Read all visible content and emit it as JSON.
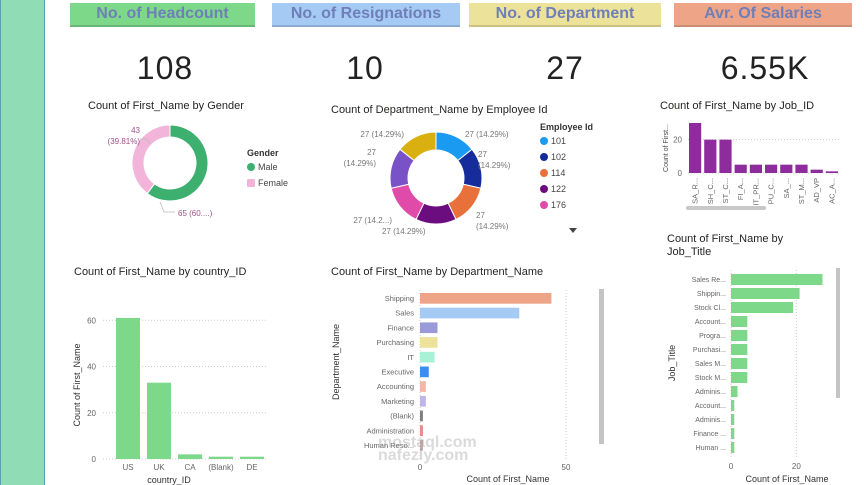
{
  "kpis": [
    {
      "label": "No. of Headcount",
      "value": "108",
      "color": "#7dd88a"
    },
    {
      "label": "No. of Resignations",
      "value": "10",
      "color": "#a5cbf5"
    },
    {
      "label": "No. of Department",
      "value": "27",
      "color": "#ede29a"
    },
    {
      "label": "Avr. Of Salaries",
      "value": "6.55K",
      "color": "#eea587"
    }
  ],
  "watermark": {
    "line1": "mostaql.com",
    "line2": "nafezly.com"
  },
  "chart_data": [
    {
      "id": "gender",
      "type": "pie",
      "title": "Count of First_Name by Gender",
      "legend_title": "Gender",
      "legend_position": "right",
      "categories": [
        "Male",
        "Female"
      ],
      "values": [
        65,
        43
      ],
      "colors": [
        "#3daf6f",
        "#f2b5d9"
      ],
      "labels": [
        "65 (60....)",
        "43 (39.81%)"
      ]
    },
    {
      "id": "employee",
      "type": "pie",
      "title": "Count of Department_Name by Employee Id",
      "legend_title": "Employee Id",
      "legend_position": "right",
      "categories": [
        "101",
        "102",
        "114",
        "122",
        "176",
        "?",
        "?"
      ],
      "legend_items": [
        "101",
        "102",
        "114",
        "122",
        "176"
      ],
      "values": [
        27,
        27,
        27,
        27,
        27,
        27,
        27
      ],
      "colors": [
        "#1a9af0",
        "#152c9a",
        "#e8703a",
        "#6b0d7e",
        "#e04aa8",
        "#7a52c7",
        "#d9b00f"
      ],
      "labels": [
        "27 (14.29%)",
        "27 (14.29%)",
        "27 (14.29%)",
        "27 (14.29%)",
        "27 (14.2...)",
        "27 (14.29%)",
        "27 (14.29%)"
      ]
    },
    {
      "id": "jobid",
      "type": "bar",
      "title": "Count of First_Name by Job_ID",
      "xlabel": "",
      "ylabel": "Count of First...",
      "categories": [
        "SA_R...",
        "SH_C...",
        "ST_C...",
        "FI_A...",
        "IT_PR...",
        "PU_C...",
        "SA_...",
        "ST_M...",
        "AD_VP",
        "AC_A..."
      ],
      "values": [
        30,
        20,
        20,
        5,
        5,
        5,
        5,
        5,
        2,
        1
      ],
      "yticks": [
        0,
        20
      ],
      "ylim": [
        0,
        30
      ],
      "color": "#8e2c9e",
      "grid": true
    },
    {
      "id": "country",
      "type": "bar",
      "title": "Count of First_Name by country_ID",
      "xlabel": "country_ID",
      "ylabel": "Count of First_Name",
      "categories": [
        "US",
        "UK",
        "CA",
        "(Blank)",
        "DE"
      ],
      "values": [
        61,
        33,
        2,
        1,
        1
      ],
      "yticks": [
        0,
        20,
        40,
        60
      ],
      "ylim": [
        0,
        64
      ],
      "color": "#7dd88a",
      "grid": true
    },
    {
      "id": "department",
      "type": "bar",
      "orientation": "horizontal",
      "title": "Count of First_Name by Department_Name",
      "xlabel": "Count of First_Name",
      "ylabel": "Department_Name",
      "categories": [
        "Shipping",
        "Sales",
        "Finance",
        "Purchasing",
        "IT",
        "Executive",
        "Accounting",
        "Marketing",
        "(Blank)",
        "Administration",
        "Human Reso..."
      ],
      "values": [
        45,
        34,
        6,
        6,
        5,
        3,
        2,
        2,
        1,
        1,
        1
      ],
      "colors": [
        "#eea587",
        "#a5cbf5",
        "#9a9ad8",
        "#ede29a",
        "#a7f2d6",
        "#3a8ff0",
        "#f0b8a8",
        "#c0b5e8",
        "#808080",
        "#e88a8a",
        "#c8a8a8"
      ],
      "xticks": [
        0,
        50
      ],
      "xlim": [
        0,
        50
      ],
      "grid": true
    },
    {
      "id": "jobtitle",
      "type": "bar",
      "orientation": "horizontal",
      "title": "Count of First_Name by Job_Title",
      "xlabel": "Count of First_Name",
      "ylabel": "Job_Title",
      "categories": [
        "Sales Re...",
        "Shippin...",
        "Stock Cl...",
        "Account...",
        "Progra...",
        "Purchasi...",
        "Sales M...",
        "Stock M...",
        "Adminis...",
        "Account...",
        "Adminis...",
        "Finance ...",
        "Human ..."
      ],
      "values": [
        28,
        21,
        19,
        5,
        5,
        5,
        5,
        5,
        2,
        1,
        1,
        1,
        1
      ],
      "xticks": [
        0,
        20
      ],
      "xlim": [
        0,
        30
      ],
      "color": "#7dd88a",
      "grid": true
    }
  ]
}
